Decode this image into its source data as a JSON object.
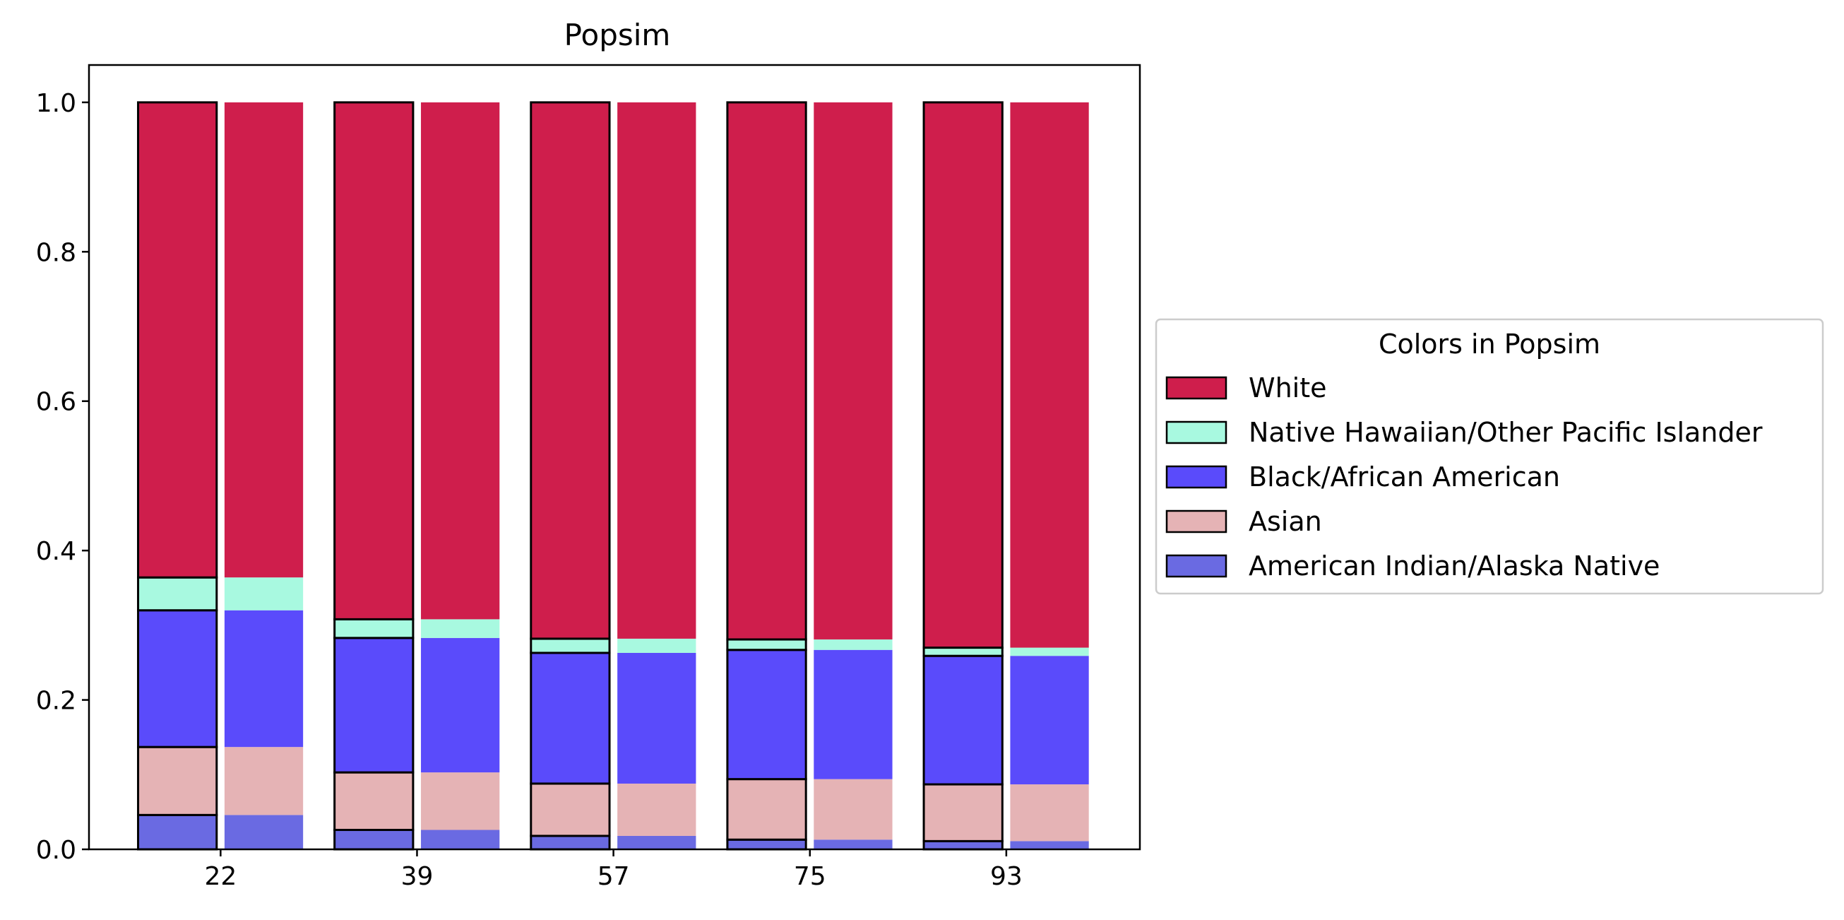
{
  "chart_data": {
    "type": "bar",
    "stacked": true,
    "title": "Popsim",
    "xlabel": "",
    "ylabel": "",
    "ylim": [
      0,
      1.05
    ],
    "yticks": [
      "0.0",
      "0.2",
      "0.4",
      "0.6",
      "0.8",
      "1.0"
    ],
    "categories": [
      "22",
      "39",
      "57",
      "75",
      "93"
    ],
    "bar_pair_note": "",
    "series": [
      {
        "name": "American Indian/Alaska Native",
        "color": "#6a6ae2",
        "values": [
          0.046,
          0.026,
          0.018,
          0.013,
          0.011
        ]
      },
      {
        "name": "Asian",
        "color": "#e5b3b5",
        "values": [
          0.091,
          0.077,
          0.07,
          0.081,
          0.076
        ]
      },
      {
        "name": "Black/African American",
        "color": "#5a4bfb",
        "values": [
          0.183,
          0.18,
          0.175,
          0.173,
          0.172
        ]
      },
      {
        "name": "Native Hawaiian/Other Pacific Islander",
        "color": "#a8f9e0",
        "values": [
          0.044,
          0.025,
          0.019,
          0.014,
          0.011
        ]
      },
      {
        "name": "White",
        "color": "#cf1e4c",
        "values": [
          0.636,
          0.692,
          0.718,
          0.719,
          0.73
        ]
      }
    ],
    "legend": {
      "title": "Colors in Popsim",
      "placement": "center-right outside",
      "order": [
        "White",
        "Native Hawaiian/Other Pacific Islander",
        "Black/African American",
        "Asian",
        "American Indian/Alaska Native"
      ]
    },
    "grid": false
  }
}
